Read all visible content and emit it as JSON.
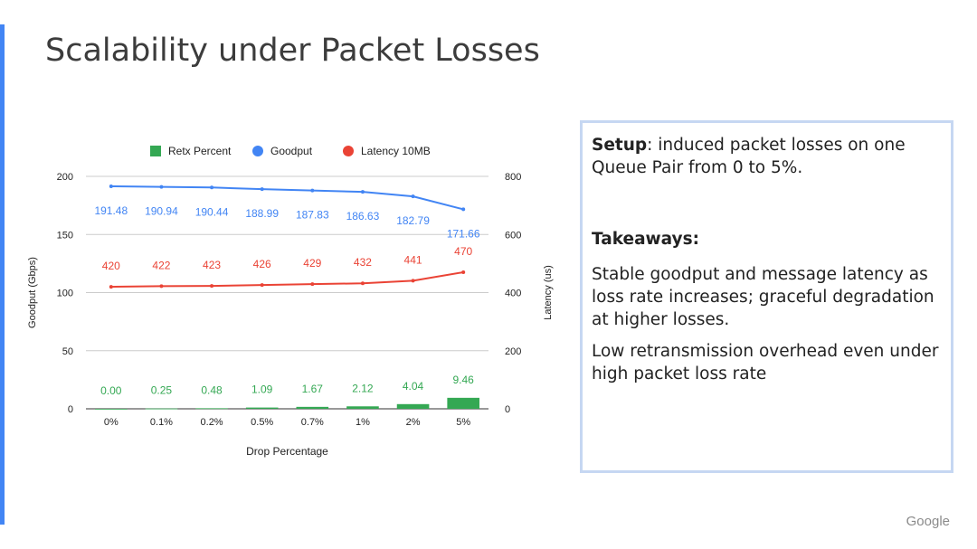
{
  "slide": {
    "title": "Scalability under Packet Losses",
    "brand": "Google",
    "accent_color": "#4285f4"
  },
  "panel": {
    "setup_label": "Setup",
    "setup_text": ": induced packet losses on one Queue Pair from 0 to 5%.",
    "takeaways_title": "Takeaways:",
    "paragraphs": [
      "Stable goodput and message latency as loss rate increases; graceful degradation at higher losses.",
      "Low retransmission overhead even under high packet loss rate"
    ]
  },
  "chart_data": {
    "type": "bar",
    "categories": [
      "0%",
      "0.1%",
      "0.2%",
      "0.5%",
      "0.7%",
      "1%",
      "2%",
      "5%"
    ],
    "xlabel": "Drop Percentage",
    "ylabel": "Goodput (Gbps)",
    "y2label": "Latency (us)",
    "ylim": [
      0,
      200
    ],
    "y2lim": [
      0,
      800
    ],
    "yticks": [
      "0",
      "50",
      "100",
      "150",
      "200"
    ],
    "y2ticks": [
      "0",
      "200",
      "400",
      "600",
      "800"
    ],
    "grid": true,
    "legend_position": "top",
    "series": [
      {
        "name": "Retx Percent",
        "kind": "bar",
        "axis": "left",
        "color": "#34a853",
        "values": [
          0.0,
          0.25,
          0.48,
          1.09,
          1.67,
          2.12,
          4.04,
          9.46
        ],
        "labels": [
          "0.00",
          "0.25",
          "0.48",
          "1.09",
          "1.67",
          "2.12",
          "4.04",
          "9.46"
        ]
      },
      {
        "name": "Goodput",
        "kind": "line",
        "axis": "left",
        "color": "#4285f4",
        "values": [
          191.48,
          190.94,
          190.44,
          188.99,
          187.83,
          186.63,
          182.79,
          171.66
        ],
        "labels": [
          "191.48",
          "190.94",
          "190.44",
          "188.99",
          "187.83",
          "186.63",
          "182.79",
          "171.66"
        ]
      },
      {
        "name": "Latency 10MB",
        "kind": "line",
        "axis": "right",
        "color": "#ea4335",
        "values": [
          420,
          422,
          423,
          426,
          429,
          432,
          441,
          470
        ],
        "labels": [
          "420",
          "422",
          "423",
          "426",
          "429",
          "432",
          "441",
          "470"
        ]
      }
    ]
  }
}
